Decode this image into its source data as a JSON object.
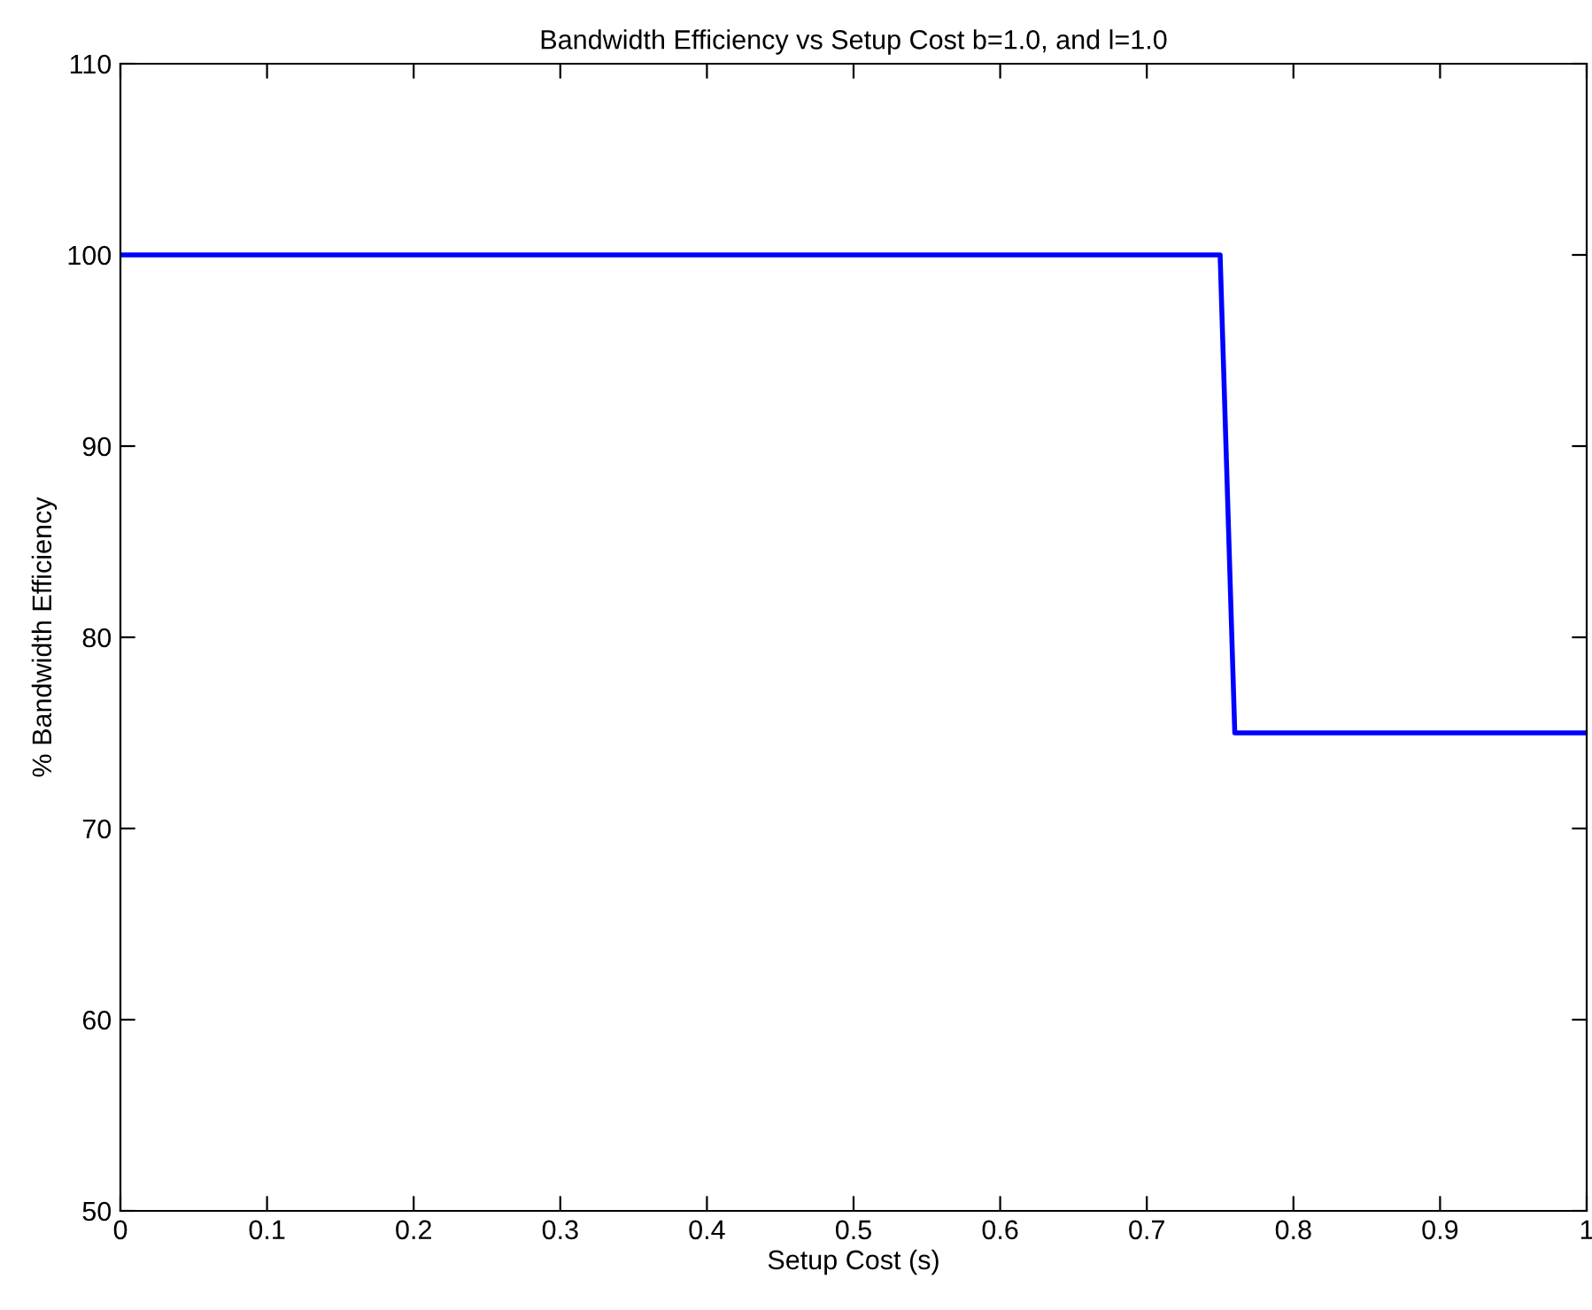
{
  "chart_data": {
    "type": "line",
    "title": "Bandwidth Efficiency vs Setup Cost b=1.0, and l=1.0",
    "xlabel": "Setup Cost (s)",
    "ylabel": "% Bandwidth Efficiency",
    "x": [
      0,
      0.75,
      0.76,
      1
    ],
    "series": [
      {
        "color": "#0000ff",
        "values": [
          100,
          100,
          75,
          75
        ]
      }
    ],
    "xlim": [
      0,
      1
    ],
    "xticks": [
      0,
      0.1,
      0.2,
      0.3,
      0.4,
      0.5,
      0.6,
      0.7,
      0.8,
      0.9,
      1
    ],
    "ylim": [
      50,
      110
    ],
    "yticks": [
      50,
      60,
      70,
      80,
      90,
      100,
      110
    ],
    "grid": false,
    "legend": false,
    "marker": "none",
    "line_style": "solid"
  }
}
